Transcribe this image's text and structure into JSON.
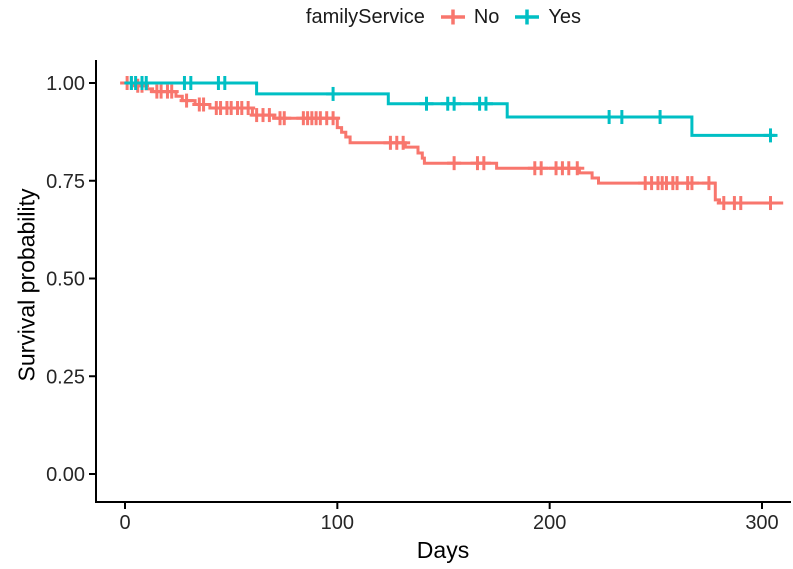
{
  "legend": {
    "title": "familyService",
    "position": "top"
  },
  "chart_data": {
    "type": "line",
    "subtype": "kaplan_meier_step_curves",
    "title": "",
    "xlabel": "Days",
    "ylabel": "Survival probability",
    "xlim": [
      0,
      312
    ],
    "ylim": [
      0,
      1.0
    ],
    "xticks": [
      0,
      100,
      200,
      300
    ],
    "yticks": [
      {
        "value": 0.0,
        "label": "0.00"
      },
      {
        "value": 0.25,
        "label": "0.25"
      },
      {
        "value": 0.5,
        "label": "0.50"
      },
      {
        "value": 0.75,
        "label": "0.75"
      },
      {
        "value": 1.0,
        "label": "1.00"
      }
    ],
    "grid": false,
    "legend_position": "top",
    "axis_color": "#000000",
    "tick_text_color": "#262626",
    "series": [
      {
        "name": "No",
        "color": "#F8766D",
        "start": [
          0,
          1.0
        ],
        "end_day": 310,
        "steps": [
          [
            5,
            0.993
          ],
          [
            10,
            0.985
          ],
          [
            13,
            0.978
          ],
          [
            24,
            0.966
          ],
          [
            27,
            0.955
          ],
          [
            33,
            0.945
          ],
          [
            40,
            0.936
          ],
          [
            60,
            0.918
          ],
          [
            70,
            0.91
          ],
          [
            100,
            0.886
          ],
          [
            102,
            0.874
          ],
          [
            104,
            0.862
          ],
          [
            106,
            0.847
          ],
          [
            132,
            0.836
          ],
          [
            138,
            0.821
          ],
          [
            140,
            0.808
          ],
          [
            141,
            0.795
          ],
          [
            175,
            0.782
          ],
          [
            214,
            0.77
          ],
          [
            220,
            0.757
          ],
          [
            223,
            0.744
          ],
          [
            278,
            0.701
          ],
          [
            280,
            0.693
          ]
        ],
        "censors": [
          [
            1,
            1.0
          ],
          [
            3,
            1.0
          ],
          [
            6,
            0.993
          ],
          [
            8,
            0.993
          ],
          [
            15,
            0.978
          ],
          [
            17,
            0.978
          ],
          [
            20,
            0.978
          ],
          [
            22,
            0.978
          ],
          [
            29,
            0.955
          ],
          [
            35,
            0.945
          ],
          [
            37,
            0.945
          ],
          [
            43,
            0.936
          ],
          [
            45,
            0.936
          ],
          [
            48,
            0.936
          ],
          [
            50,
            0.936
          ],
          [
            53,
            0.936
          ],
          [
            55,
            0.936
          ],
          [
            58,
            0.936
          ],
          [
            62,
            0.918
          ],
          [
            65,
            0.918
          ],
          [
            68,
            0.918
          ],
          [
            73,
            0.91
          ],
          [
            75,
            0.91
          ],
          [
            84,
            0.91
          ],
          [
            86,
            0.91
          ],
          [
            88,
            0.91
          ],
          [
            90,
            0.91
          ],
          [
            92,
            0.91
          ],
          [
            95,
            0.91
          ],
          [
            98,
            0.91
          ],
          [
            125,
            0.847
          ],
          [
            128,
            0.847
          ],
          [
            131,
            0.847
          ],
          [
            155,
            0.795
          ],
          [
            166,
            0.795
          ],
          [
            169,
            0.795
          ],
          [
            193,
            0.782
          ],
          [
            196,
            0.782
          ],
          [
            203,
            0.782
          ],
          [
            206,
            0.782
          ],
          [
            209,
            0.782
          ],
          [
            213,
            0.782
          ],
          [
            245,
            0.744
          ],
          [
            248,
            0.744
          ],
          [
            251,
            0.744
          ],
          [
            253,
            0.744
          ],
          [
            255,
            0.744
          ],
          [
            258,
            0.744
          ],
          [
            260,
            0.744
          ],
          [
            265,
            0.744
          ],
          [
            267,
            0.744
          ],
          [
            275,
            0.744
          ],
          [
            282,
            0.693
          ],
          [
            287,
            0.693
          ],
          [
            290,
            0.693
          ],
          [
            304,
            0.693
          ]
        ]
      },
      {
        "name": "Yes",
        "color": "#00BFC4",
        "start": [
          0,
          1.0
        ],
        "end_day": 306,
        "steps": [
          [
            62,
            0.972
          ],
          [
            124,
            0.947
          ],
          [
            180,
            0.913
          ],
          [
            267,
            0.866
          ]
        ],
        "censors": [
          [
            3,
            1.0
          ],
          [
            5,
            1.0
          ],
          [
            8,
            1.0
          ],
          [
            10,
            1.0
          ],
          [
            28,
            1.0
          ],
          [
            31,
            1.0
          ],
          [
            44,
            1.0
          ],
          [
            47,
            1.0
          ],
          [
            98,
            0.972
          ],
          [
            142,
            0.947
          ],
          [
            152,
            0.947
          ],
          [
            155,
            0.947
          ],
          [
            167,
            0.947
          ],
          [
            170,
            0.947
          ],
          [
            228,
            0.913
          ],
          [
            234,
            0.913
          ],
          [
            252,
            0.913
          ],
          [
            304,
            0.866
          ]
        ]
      }
    ]
  }
}
